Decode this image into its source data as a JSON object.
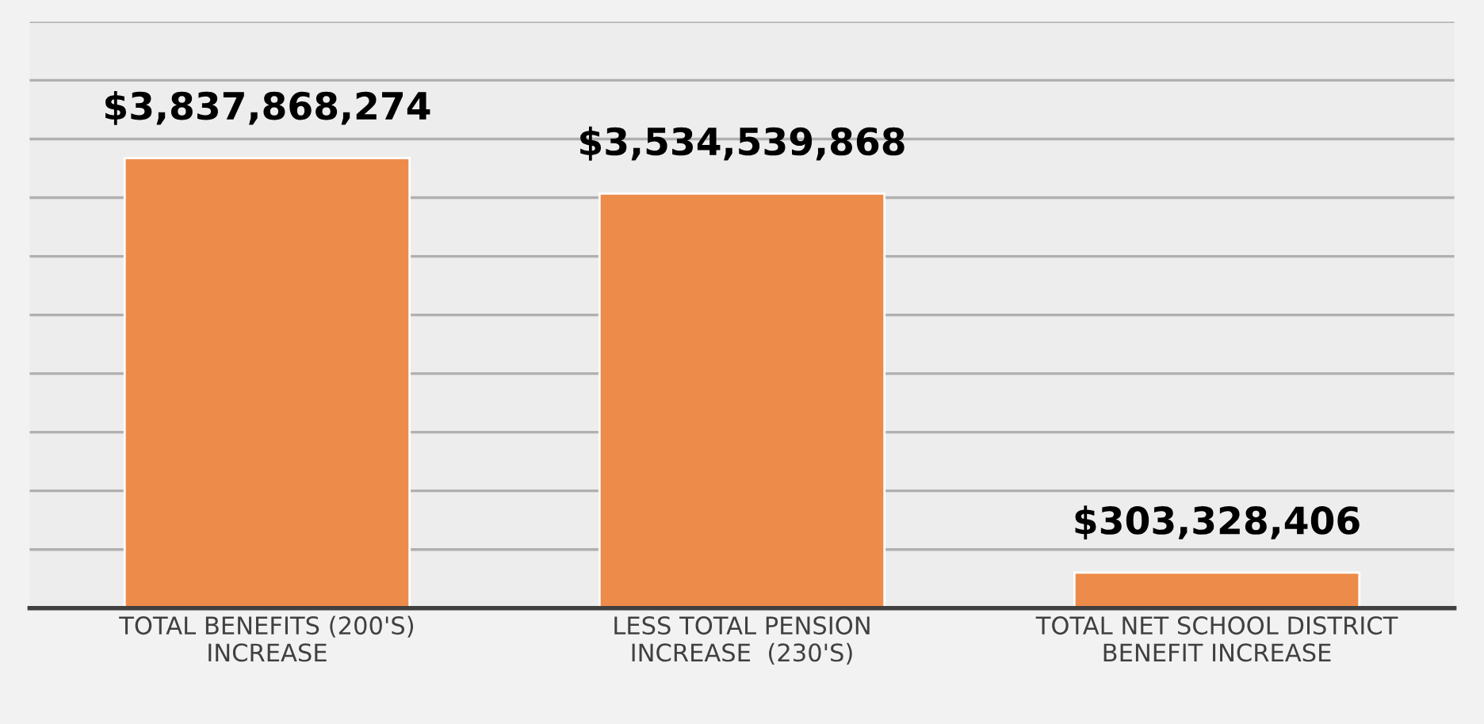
{
  "chart_data": {
    "type": "bar",
    "categories": [
      "TOTAL BENEFITS (200'S)\nINCREASE",
      "LESS TOTAL PENSION\nINCREASE  (230'S)",
      "TOTAL NET SCHOOL DISTRICT\nBENEFIT INCREASE"
    ],
    "values": [
      3837868274,
      3534539868,
      303328406
    ],
    "value_labels": [
      "$3,837,868,274",
      "$3,534,539,868",
      "$303,328,406"
    ],
    "color": "#ed8b4a",
    "ylim": [
      0,
      5000000000
    ],
    "yticks": [
      {
        "value": 0,
        "label": null
      },
      {
        "value": 500000000,
        "label": null
      },
      {
        "value": 1000000000,
        "label": null
      },
      {
        "value": 1500000000,
        "label": null
      },
      {
        "value": 2000000000,
        "label": null
      },
      {
        "value": 2500000000,
        "label": null
      },
      {
        "value": 3000000000,
        "label": null
      },
      {
        "value": 3500000000,
        "label": null
      },
      {
        "value": 4000000000,
        "label": null
      },
      {
        "value": 4500000000,
        "label": null
      },
      {
        "value": 5000000000,
        "label": null
      }
    ],
    "tick_labels": "x",
    "grid": "y",
    "legend": false
  }
}
